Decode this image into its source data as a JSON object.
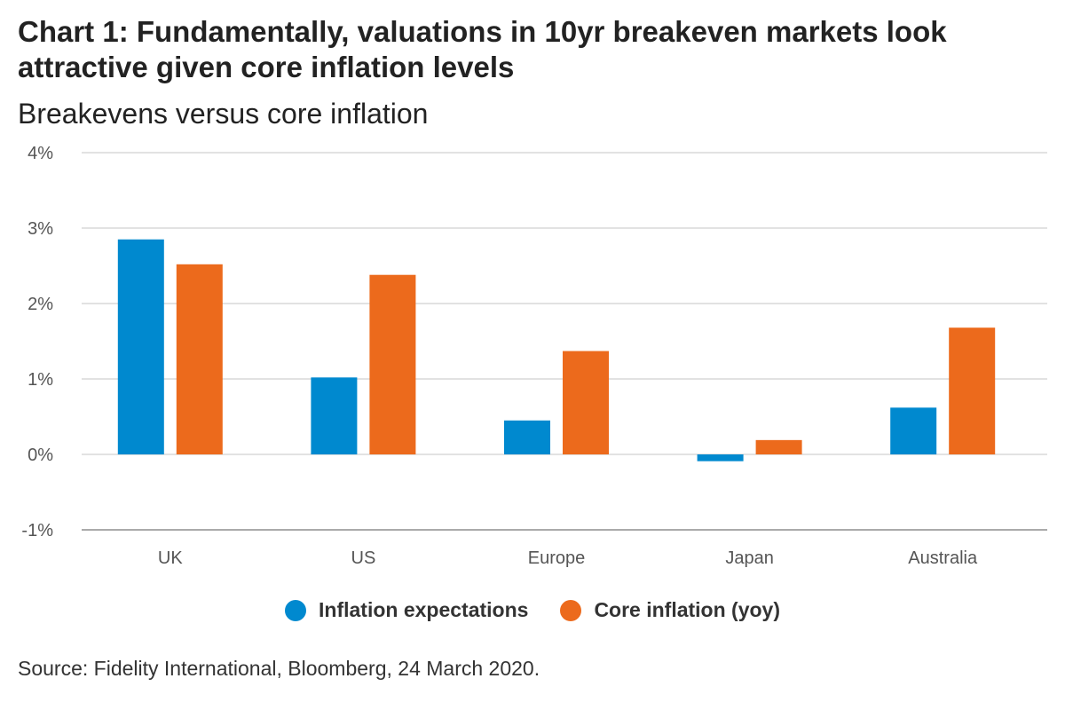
{
  "chart_title": "Chart 1: Fundamentally, valuations in 10yr breakeven markets look attractive given core inflation levels",
  "chart_subtitle": "Breakevens versus core inflation",
  "source": "Source: Fidelity International, Bloomberg, 24 March 2020.",
  "chart_data": {
    "type": "bar",
    "title": "Chart 1: Fundamentally, valuations in 10yr breakeven markets look attractive given core inflation levels",
    "subtitle": "Breakevens versus core inflation",
    "xlabel": "",
    "ylabel": "",
    "ylim": [
      -1,
      4
    ],
    "yticks": [
      {
        "value": 4,
        "label": "4%"
      },
      {
        "value": 3,
        "label": "3%"
      },
      {
        "value": 2,
        "label": "2%"
      },
      {
        "value": 1,
        "label": "1%"
      },
      {
        "value": 0,
        "label": "0%"
      },
      {
        "value": -1,
        "label": "-1%"
      }
    ],
    "grid": true,
    "legend_position": "bottom",
    "categories": [
      "UK",
      "US",
      "Europe",
      "Japan",
      "Australia"
    ],
    "series": [
      {
        "name": "Inflation expectations",
        "color": "#0089cf",
        "values": [
          2.85,
          1.02,
          0.45,
          -0.09,
          0.62
        ]
      },
      {
        "name": "Core inflation (yoy)",
        "color": "#ec6a1c",
        "values": [
          2.52,
          2.38,
          1.37,
          0.19,
          1.68
        ]
      }
    ]
  }
}
